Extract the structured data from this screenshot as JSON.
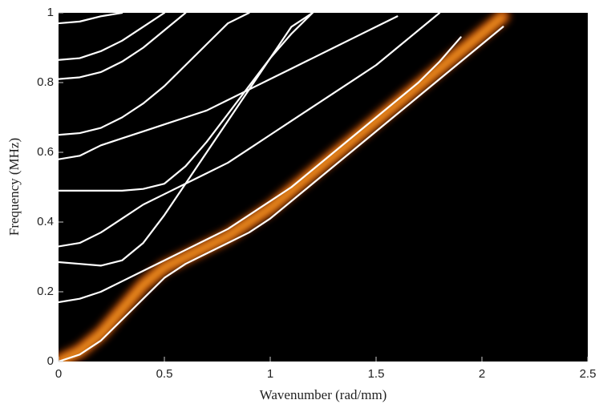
{
  "chart_data": {
    "type": "line",
    "xlabel": "Wavenumber (rad/mm)",
    "ylabel": "Frequency (MHz)",
    "background": "#000000",
    "x": [
      0,
      0.1,
      0.2,
      0.3,
      0.4,
      0.5,
      0.6,
      0.7,
      0.8,
      0.9,
      1,
      1.1,
      1.2,
      1.3,
      1.4,
      1.5,
      1.6,
      1.7,
      1.8,
      1.9,
      2,
      2.1,
      2.2,
      2.3,
      2.4,
      2.5
    ],
    "xlim": [
      0,
      2.5
    ],
    "xticks": [
      0,
      0.5,
      1,
      1.5,
      2,
      2.5
    ],
    "ylim": [
      0,
      1
    ],
    "yticks": [
      0,
      0.2,
      0.4,
      0.6,
      0.8,
      1
    ],
    "series": [
      {
        "color": "#ff5a00",
        "glow": true,
        "values": [
          0,
          0.03,
          0.08,
          0.15,
          0.22,
          0.27,
          0.3,
          0.33,
          0.36,
          0.4,
          0.44,
          0.49,
          0.54,
          0.59,
          0.64,
          0.69,
          0.74,
          0.79,
          0.84,
          0.89,
          0.94,
          0.99,
          null,
          null,
          null,
          null
        ]
      },
      {
        "color": "#ffffff",
        "values": [
          0,
          0.02,
          0.06,
          0.12,
          0.18,
          0.24,
          0.28,
          0.31,
          0.34,
          0.37,
          0.41,
          0.46,
          0.51,
          0.56,
          0.61,
          0.66,
          0.71,
          0.76,
          0.81,
          0.86,
          0.91,
          0.96,
          null,
          null,
          null,
          null
        ]
      },
      {
        "color": "#ffffff",
        "values": [
          0.17,
          0.18,
          0.2,
          0.23,
          0.26,
          0.29,
          0.32,
          0.35,
          0.38,
          0.42,
          0.46,
          0.5,
          0.55,
          0.6,
          0.65,
          0.7,
          0.75,
          0.8,
          0.86,
          0.93,
          null,
          null,
          null,
          null,
          null,
          null
        ]
      },
      {
        "color": "#ffffff",
        "values": [
          0.285,
          0.28,
          0.275,
          0.29,
          0.34,
          0.42,
          0.51,
          0.6,
          0.69,
          0.78,
          0.87,
          0.96,
          1.0,
          null,
          null,
          null,
          null,
          null,
          null,
          null,
          null,
          null,
          null,
          null,
          null,
          null
        ]
      },
      {
        "color": "#ffffff",
        "values": [
          0.33,
          0.34,
          0.37,
          0.41,
          0.45,
          0.48,
          0.51,
          0.54,
          0.57,
          0.61,
          0.65,
          0.69,
          0.73,
          0.77,
          0.81,
          0.85,
          0.9,
          0.95,
          1.0,
          null,
          null,
          null,
          null,
          null,
          null,
          null
        ]
      },
      {
        "color": "#ffffff",
        "values": [
          0.49,
          0.49,
          0.49,
          0.49,
          0.495,
          0.51,
          0.56,
          0.63,
          0.71,
          0.79,
          0.87,
          0.94,
          1.0,
          null,
          null,
          null,
          null,
          null,
          null,
          null,
          null,
          null,
          null,
          null,
          null,
          null
        ]
      },
      {
        "color": "#ffffff",
        "values": [
          0.58,
          0.59,
          0.62,
          0.64,
          0.66,
          0.68,
          0.7,
          0.72,
          0.75,
          0.78,
          0.81,
          0.84,
          0.87,
          0.9,
          0.93,
          0.96,
          0.99,
          null,
          null,
          null,
          null,
          null,
          null,
          null,
          null,
          null
        ]
      },
      {
        "color": "#ffffff",
        "values": [
          0.65,
          0.655,
          0.67,
          0.7,
          0.74,
          0.79,
          0.85,
          0.91,
          0.97,
          1.0,
          null,
          null,
          null,
          null,
          null,
          null,
          null,
          null,
          null,
          null,
          null,
          null,
          null,
          null,
          null,
          null
        ]
      },
      {
        "color": "#ffffff",
        "values": [
          0.81,
          0.815,
          0.83,
          0.86,
          0.9,
          0.95,
          1.0,
          null,
          null,
          null,
          null,
          null,
          null,
          null,
          null,
          null,
          null,
          null,
          null,
          null,
          null,
          null,
          null,
          null,
          null,
          null
        ]
      },
      {
        "color": "#ffffff",
        "values": [
          0.865,
          0.87,
          0.89,
          0.92,
          0.96,
          1.0,
          null,
          null,
          null,
          null,
          null,
          null,
          null,
          null,
          null,
          null,
          null,
          null,
          null,
          null,
          null,
          null,
          null,
          null,
          null,
          null
        ]
      },
      {
        "color": "#ffffff",
        "values": [
          0.97,
          0.975,
          0.99,
          1.0,
          null,
          null,
          null,
          null,
          null,
          null,
          null,
          null,
          null,
          null,
          null,
          null,
          null,
          null,
          null,
          null,
          null,
          null,
          null,
          null,
          null,
          null
        ]
      }
    ]
  }
}
